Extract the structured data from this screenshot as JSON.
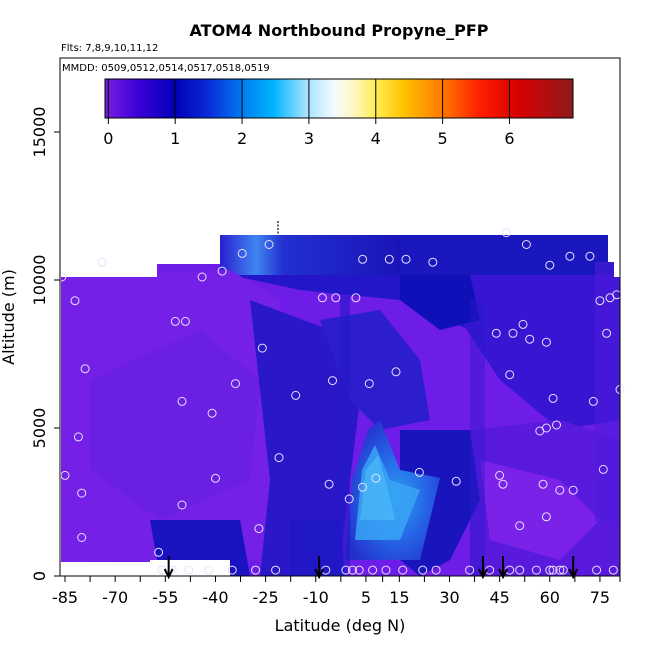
{
  "chart_data": {
    "type": "heatmap",
    "title": "ATOM4 Northbound Propyne_PFP",
    "subtitle_flights": "Flts: 7,8,9,10,11,12",
    "subtitle_dates": "MMDD: 0509,0512,0514,0517,0518,0519",
    "xlabel": "Latitude (deg N)",
    "ylabel": "Altitude (m)",
    "x_ticks": [
      -85,
      -70,
      -55,
      -40,
      -25,
      -10,
      5,
      15,
      30,
      45,
      60,
      75
    ],
    "x_tick_labels": [
      "-85",
      "-70",
      "-55",
      "-40",
      "-25",
      "-10",
      "5",
      "15",
      "30",
      "45",
      "60",
      "75"
    ],
    "y_ticks": [
      0,
      5000,
      10000,
      15000
    ],
    "y_tick_labels": [
      "0",
      "5000",
      "10000",
      "15000"
    ],
    "xlim": [
      -86.5,
      81
    ],
    "ylim": [
      0,
      17500
    ],
    "colorbar": {
      "ticks": [
        0,
        1,
        2,
        3,
        4,
        5,
        6
      ],
      "tick_labels": [
        "0",
        "1",
        "2",
        "3",
        "4",
        "5",
        "6"
      ],
      "range": [
        -0.05,
        6.95
      ]
    },
    "arrows_latitude": [
      -54,
      -9,
      40,
      46,
      67
    ],
    "samples": [
      [
        -86,
        10100
      ],
      [
        -85,
        3400
      ],
      [
        -82,
        9300
      ],
      [
        -81,
        4700
      ],
      [
        -80,
        2800
      ],
      [
        -80,
        1300
      ],
      [
        -79,
        7000
      ],
      [
        -74,
        10600
      ],
      [
        -57,
        800
      ],
      [
        -56,
        200
      ],
      [
        -53,
        200
      ],
      [
        -52,
        8600
      ],
      [
        -50,
        2400
      ],
      [
        -50,
        5900
      ],
      [
        -49,
        8600
      ],
      [
        -48,
        200
      ],
      [
        -44,
        10100
      ],
      [
        -42,
        200
      ],
      [
        -41,
        5500
      ],
      [
        -40,
        3300
      ],
      [
        -38,
        10300
      ],
      [
        -35,
        200
      ],
      [
        -34,
        6500
      ],
      [
        -32,
        10900
      ],
      [
        -28,
        200
      ],
      [
        -27,
        1600
      ],
      [
        -26,
        7700
      ],
      [
        -24,
        11200
      ],
      [
        -22,
        200
      ],
      [
        -21,
        4000
      ],
      [
        -16,
        6100
      ],
      [
        -8,
        9400
      ],
      [
        -7,
        200
      ],
      [
        -6,
        3100
      ],
      [
        -5,
        6600
      ],
      [
        -4,
        9400
      ],
      [
        -1,
        200
      ],
      [
        0,
        2600
      ],
      [
        1,
        200
      ],
      [
        2,
        9400
      ],
      [
        3,
        200
      ],
      [
        4,
        10700
      ],
      [
        4,
        3000
      ],
      [
        6,
        6500
      ],
      [
        7,
        200
      ],
      [
        8,
        3300
      ],
      [
        11,
        200
      ],
      [
        12,
        10700
      ],
      [
        14,
        6900
      ],
      [
        16,
        200
      ],
      [
        17,
        10700
      ],
      [
        21,
        3500
      ],
      [
        22,
        200
      ],
      [
        25,
        10600
      ],
      [
        26,
        200
      ],
      [
        32,
        3200
      ],
      [
        36,
        200
      ],
      [
        42,
        200
      ],
      [
        44,
        8200
      ],
      [
        45,
        3400
      ],
      [
        46,
        3100
      ],
      [
        47,
        11600
      ],
      [
        48,
        6800
      ],
      [
        48,
        200
      ],
      [
        49,
        8200
      ],
      [
        51,
        1700
      ],
      [
        51,
        200
      ],
      [
        52,
        8500
      ],
      [
        53,
        11200
      ],
      [
        54,
        8000
      ],
      [
        56,
        200
      ],
      [
        57,
        4900
      ],
      [
        58,
        3100
      ],
      [
        59,
        7900
      ],
      [
        59,
        5000
      ],
      [
        59,
        2000
      ],
      [
        60,
        200
      ],
      [
        60,
        10500
      ],
      [
        61,
        6000
      ],
      [
        61,
        200
      ],
      [
        62,
        5100
      ],
      [
        63,
        200
      ],
      [
        63,
        2900
      ],
      [
        64,
        200
      ],
      [
        66,
        10800
      ],
      [
        67,
        2900
      ],
      [
        72,
        10800
      ],
      [
        73,
        5900
      ],
      [
        74,
        200
      ],
      [
        75,
        9300
      ],
      [
        76,
        3600
      ],
      [
        77,
        8200
      ],
      [
        78,
        9400
      ],
      [
        79,
        200
      ],
      [
        81,
        6300
      ],
      [
        80,
        9500
      ]
    ]
  }
}
